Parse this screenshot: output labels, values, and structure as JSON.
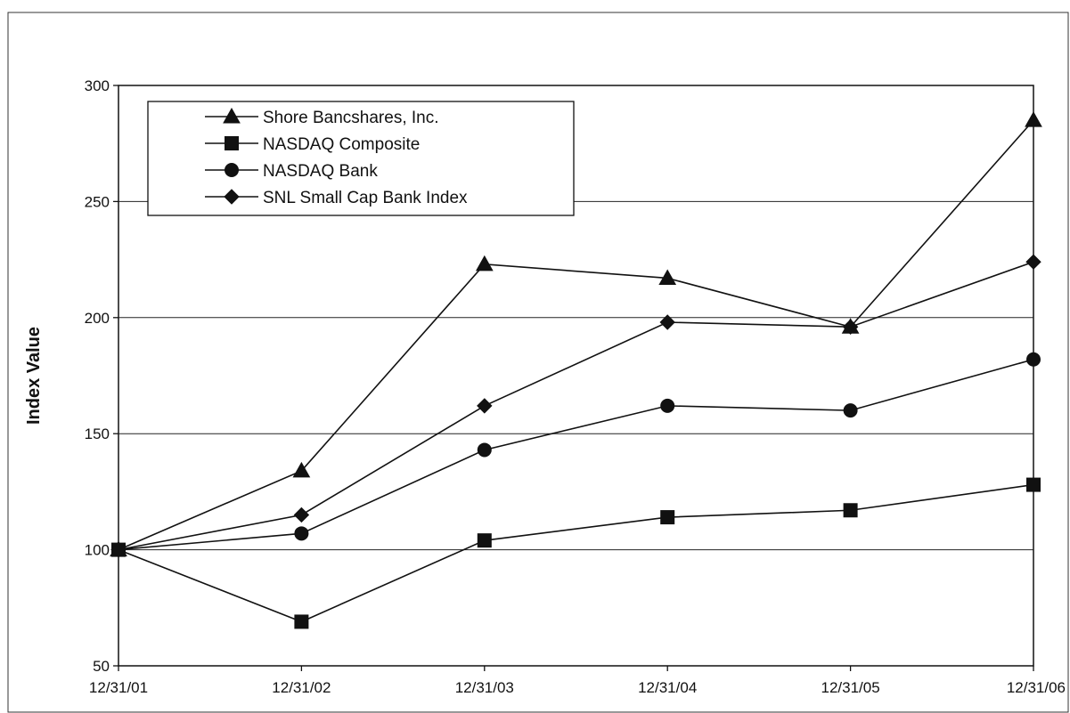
{
  "chart_data": {
    "type": "line",
    "title": "",
    "xlabel": "",
    "ylabel": "Index Value",
    "categories": [
      "12/31/01",
      "12/31/02",
      "12/31/03",
      "12/31/04",
      "12/31/05",
      "12/31/06"
    ],
    "y_ticks": [
      "50",
      "100",
      "150",
      "200",
      "250",
      "300"
    ],
    "ylim": [
      50,
      300
    ],
    "grid": true,
    "legend_position": "top-left",
    "series": [
      {
        "name": "Shore Bancshares, Inc.",
        "marker": "triangle",
        "values": [
          100,
          134,
          223,
          217,
          196,
          285
        ]
      },
      {
        "name": "NASDAQ Composite",
        "marker": "square",
        "values": [
          100,
          69,
          104,
          114,
          117,
          128
        ]
      },
      {
        "name": "NASDAQ Bank",
        "marker": "circle",
        "values": [
          100,
          107,
          143,
          162,
          160,
          182
        ]
      },
      {
        "name": "SNL Small Cap Bank Index",
        "marker": "diamond",
        "values": [
          100,
          115,
          162,
          198,
          196,
          224
        ]
      }
    ],
    "colors": {
      "line": "#111111",
      "grid": "#222222",
      "background": "#ffffff"
    }
  }
}
